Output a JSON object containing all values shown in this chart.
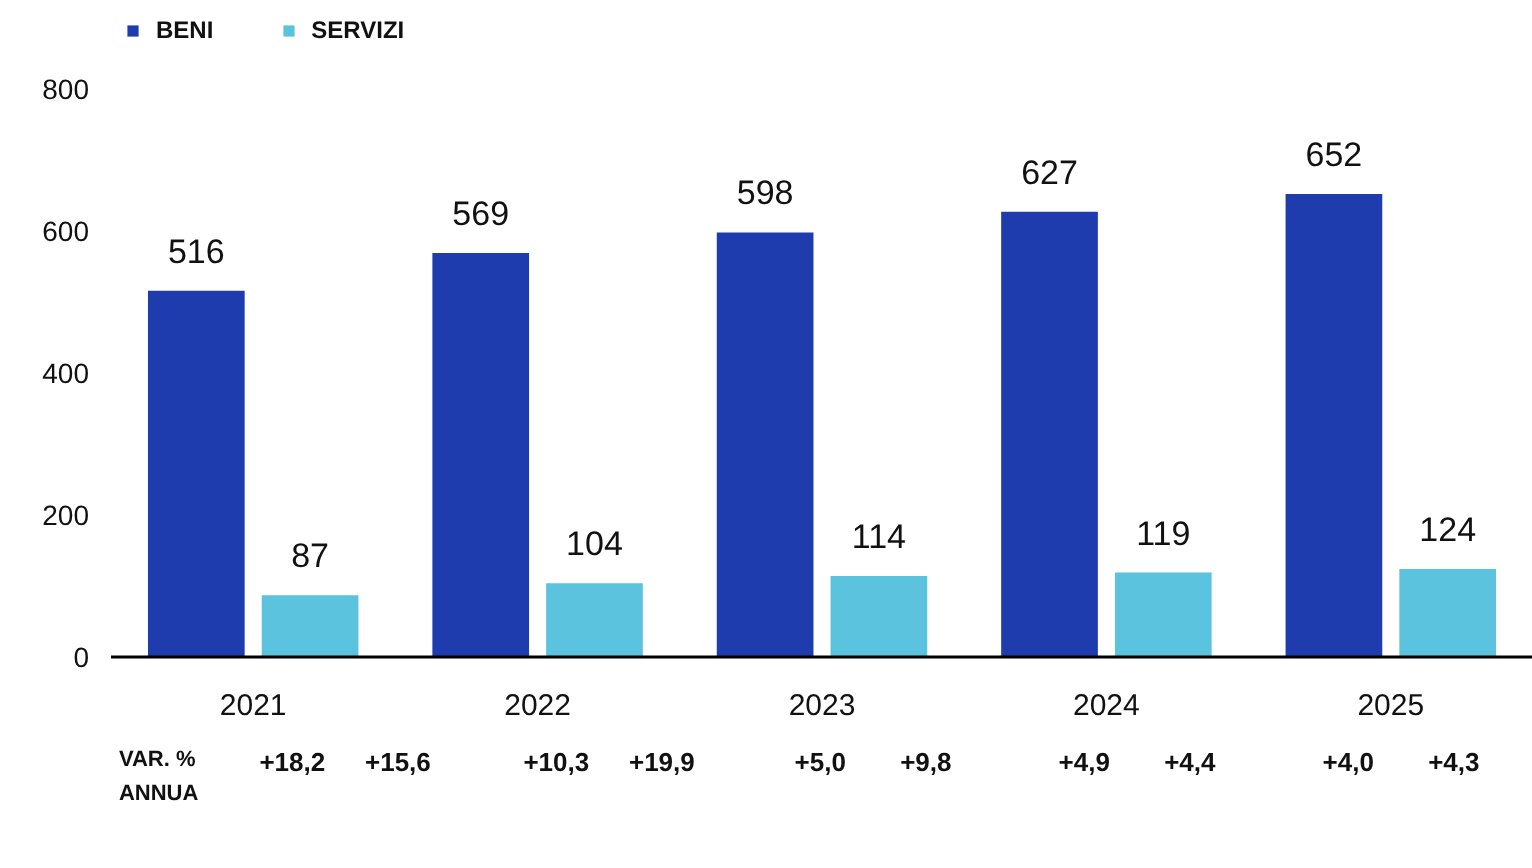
{
  "chart_data": {
    "type": "bar",
    "categories": [
      "2021",
      "2022",
      "2023",
      "2024",
      "2025"
    ],
    "series": [
      {
        "name": "BENI",
        "color": "#1e3cae",
        "values": [
          516,
          569,
          598,
          627,
          652
        ]
      },
      {
        "name": "SERVIZI",
        "color": "#5cc3de",
        "values": [
          87,
          104,
          114,
          119,
          124
        ]
      }
    ],
    "ylim": [
      0,
      800
    ],
    "yticks": [
      0,
      200,
      400,
      600,
      800
    ],
    "data_labels": true,
    "grid": false,
    "legend": "top left",
    "annotations": [
      "VAR. % ANNUA",
      "+18,2",
      "+15,6",
      "+10,3",
      "+19,9",
      "+5,0",
      "+9,8",
      "+4,9",
      "+4,4",
      "+4,0",
      "+4,3"
    ]
  }
}
